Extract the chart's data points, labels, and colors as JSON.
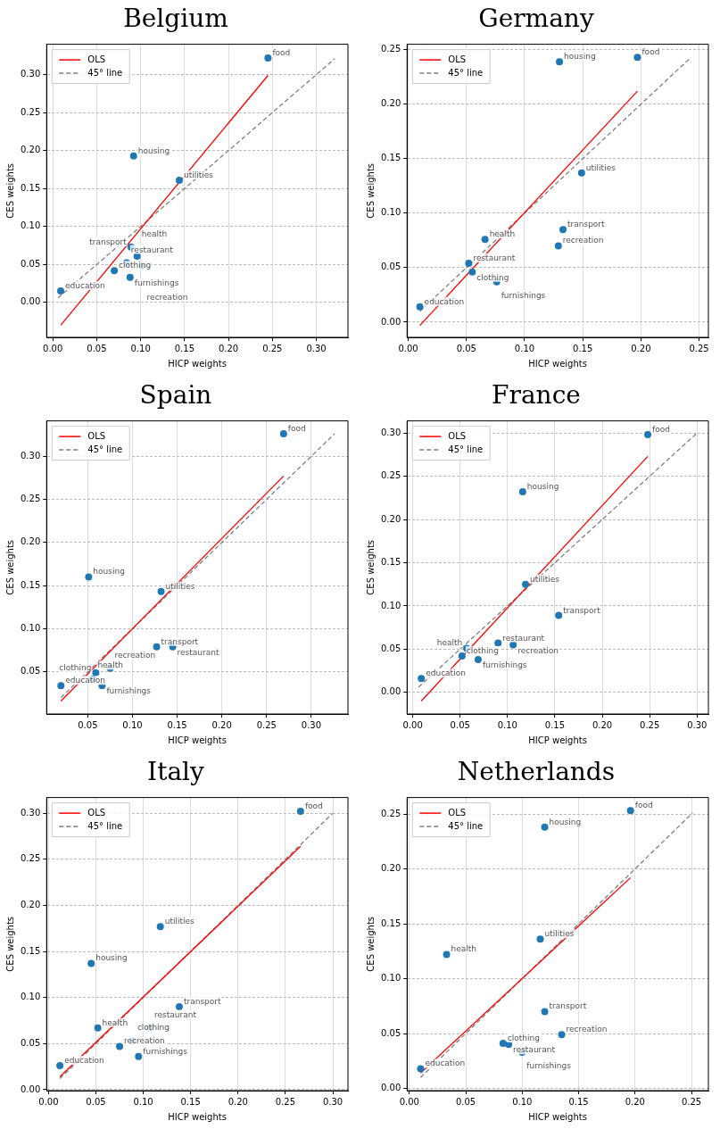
{
  "chart_data": [
    {
      "type": "scatter",
      "title": "Belgium",
      "xlabel": "HICP weights",
      "ylabel": "CES weights",
      "xlim": [
        -0.007,
        0.336
      ],
      "ylim": [
        -0.046,
        0.34
      ],
      "xticks": [
        {
          "value": 0,
          "label": "0.00"
        },
        0.05,
        {
          "value": 0.1,
          "label": "0.10"
        },
        0.15,
        {
          "value": 0.2,
          "label": "0.20"
        },
        0.25,
        {
          "value": 0.3,
          "label": "0.30"
        }
      ],
      "yticks": [
        {
          "value": 0,
          "label": "0.00"
        },
        0.05,
        {
          "value": 0.1,
          "label": "0.10"
        },
        0.15,
        {
          "value": 0.2,
          "label": "0.20"
        },
        0.25,
        {
          "value": 0.3,
          "label": "0.30"
        }
      ],
      "grid": true,
      "legend": "top left",
      "series": [
        {
          "type": "scatter",
          "marker": "circle",
          "color": "#1f77b4",
          "x": [
            0.245,
            0.092,
            0.144,
            0.089,
            0.096,
            0.084,
            0.102,
            0.07,
            0.088,
            0.009
          ],
          "values": [
            0.322,
            0.193,
            0.161,
            0.073,
            0.061,
            0.052,
            0.048,
            0.042,
            0.033,
            0.015
          ],
          "value_labels": [
            "food",
            "housing",
            "utilities",
            "transport",
            "health",
            "restaurant",
            "recreation",
            "clothing",
            "furnishings",
            "education"
          ]
        },
        {
          "type": "line",
          "marker": "none",
          "name": "OLS",
          "color": "#ff0000",
          "x": [
            0.009,
            0.245
          ],
          "values": [
            -0.03,
            0.299
          ]
        },
        {
          "type": "line",
          "marker": "none",
          "name": "45° line",
          "color": "#808080",
          "line_style": "dashed",
          "x": [
            0.006,
            0.321
          ],
          "values": [
            0.006,
            0.321
          ]
        }
      ]
    },
    {
      "type": "scatter",
      "title": "Germany",
      "xlabel": "HICP weights",
      "ylabel": "CES weights",
      "xlim": [
        -0.001,
        0.258
      ],
      "ylim": [
        -0.014,
        0.255
      ],
      "xticks": [
        {
          "value": 0,
          "label": "0.00"
        },
        0.05,
        {
          "value": 0.1,
          "label": "0.10"
        },
        0.15,
        {
          "value": 0.2,
          "label": "0.20"
        },
        0.25
      ],
      "yticks": [
        {
          "value": 0,
          "label": "0.00"
        },
        0.05,
        {
          "value": 0.1,
          "label": "0.10"
        },
        0.15,
        {
          "value": 0.2,
          "label": "0.20"
        },
        0.25
      ],
      "grid": true,
      "legend": "top left",
      "series": [
        {
          "type": "scatter",
          "marker": "circle",
          "color": "#1f77b4",
          "x": [
            0.197,
            0.13,
            0.149,
            0.133,
            0.129,
            0.066,
            0.052,
            0.055,
            0.076,
            0.01
          ],
          "values": [
            0.243,
            0.239,
            0.137,
            0.085,
            0.07,
            0.076,
            0.054,
            0.046,
            0.037,
            0.014
          ],
          "value_labels": [
            "food",
            "housing",
            "utilities",
            "transport",
            "recreation",
            "health",
            "restaurant",
            "clothing",
            "furnishings",
            "education"
          ]
        },
        {
          "type": "line",
          "marker": "none",
          "name": "OLS",
          "color": "#ff0000",
          "x": [
            0.01,
            0.197
          ],
          "values": [
            -0.003,
            0.212
          ]
        },
        {
          "type": "line",
          "marker": "none",
          "name": "45° line",
          "color": "#808080",
          "line_style": "dashed",
          "x": [
            0.01,
            0.243
          ],
          "values": [
            0.01,
            0.243
          ]
        }
      ]
    },
    {
      "type": "scatter",
      "title": "Spain",
      "xlabel": "HICP weights",
      "ylabel": "CES weights",
      "xlim": [
        0.004,
        0.341
      ],
      "ylim": [
        0.001,
        0.341
      ],
      "xticks": [
        0.05,
        {
          "value": 0.1,
          "label": "0.10"
        },
        0.15,
        {
          "value": 0.2,
          "label": "0.20"
        },
        0.25,
        {
          "value": 0.3,
          "label": "0.30"
        }
      ],
      "yticks": [
        0.05,
        {
          "value": 0.1,
          "label": "0.10"
        },
        0.15,
        {
          "value": 0.2,
          "label": "0.20"
        },
        0.25,
        {
          "value": 0.3,
          "label": "0.30"
        }
      ],
      "grid": true,
      "legend": "top left",
      "series": [
        {
          "type": "scatter",
          "marker": "circle",
          "color": "#1f77b4",
          "x": [
            0.269,
            0.051,
            0.132,
            0.127,
            0.145,
            0.075,
            0.059,
            0.056,
            0.066,
            0.02
          ],
          "values": [
            0.326,
            0.16,
            0.143,
            0.079,
            0.079,
            0.054,
            0.049,
            0.042,
            0.034,
            0.034
          ],
          "value_labels": [
            "food",
            "housing",
            "utilities",
            "transport",
            "restaurant",
            "recreation",
            "clothing",
            "health",
            "furnishings",
            "education"
          ]
        },
        {
          "type": "line",
          "marker": "none",
          "name": "OLS",
          "color": "#ff0000",
          "x": [
            0.02,
            0.269
          ],
          "values": [
            0.016,
            0.277
          ]
        },
        {
          "type": "line",
          "marker": "none",
          "name": "45° line",
          "color": "#808080",
          "line_style": "dashed",
          "x": [
            0.02,
            0.326
          ],
          "values": [
            0.02,
            0.326
          ]
        }
      ]
    },
    {
      "type": "scatter",
      "title": "France",
      "xlabel": "HICP weights",
      "ylabel": "CES weights",
      "xlim": [
        -0.006,
        0.312
      ],
      "ylim": [
        -0.025,
        0.314
      ],
      "xticks": [
        {
          "value": 0,
          "label": "0.00"
        },
        0.05,
        {
          "value": 0.1,
          "label": "0.10"
        },
        0.15,
        {
          "value": 0.2,
          "label": "0.20"
        },
        0.25,
        {
          "value": 0.3,
          "label": "0.30"
        }
      ],
      "yticks": [
        {
          "value": 0,
          "label": "0.00"
        },
        0.05,
        {
          "value": 0.1,
          "label": "0.10"
        },
        0.15,
        {
          "value": 0.2,
          "label": "0.20"
        },
        0.25,
        {
          "value": 0.3,
          "label": "0.30"
        }
      ],
      "grid": true,
      "legend": "top left",
      "series": [
        {
          "type": "scatter",
          "marker": "circle",
          "color": "#1f77b4",
          "x": [
            0.248,
            0.116,
            0.119,
            0.154,
            0.09,
            0.106,
            0.057,
            0.052,
            0.069,
            0.009
          ],
          "values": [
            0.298,
            0.232,
            0.125,
            0.089,
            0.057,
            0.055,
            0.051,
            0.042,
            0.038,
            0.016
          ],
          "value_labels": [
            "food",
            "housing",
            "utilities",
            "transport",
            "restaurant",
            "recreation",
            "health",
            "clothing",
            "furnishings",
            "education"
          ]
        },
        {
          "type": "line",
          "marker": "none",
          "name": "OLS",
          "color": "#ff0000",
          "x": [
            0.009,
            0.248
          ],
          "values": [
            -0.01,
            0.273
          ]
        },
        {
          "type": "line",
          "marker": "none",
          "name": "45° line",
          "color": "#808080",
          "line_style": "dashed",
          "x": [
            0.006,
            0.299
          ],
          "values": [
            0.006,
            0.299
          ]
        }
      ]
    },
    {
      "type": "scatter",
      "title": "Italy",
      "xlabel": "HICP weights",
      "ylabel": "CES weights",
      "xlim": [
        -0.002,
        0.316
      ],
      "ylim": [
        -0.001,
        0.317
      ],
      "xticks": [
        {
          "value": 0,
          "label": "0.00"
        },
        0.05,
        {
          "value": 0.1,
          "label": "0.10"
        },
        0.15,
        {
          "value": 0.2,
          "label": "0.20"
        },
        0.25,
        {
          "value": 0.3,
          "label": "0.30"
        }
      ],
      "yticks": [
        {
          "value": 0,
          "label": "0.00"
        },
        0.05,
        {
          "value": 0.1,
          "label": "0.10"
        },
        0.15,
        {
          "value": 0.2,
          "label": "0.20"
        },
        0.25,
        {
          "value": 0.3,
          "label": "0.30"
        }
      ],
      "grid": true,
      "legend": "top left",
      "series": [
        {
          "type": "scatter",
          "marker": "circle",
          "color": "#1f77b4",
          "x": [
            0.266,
            0.118,
            0.045,
            0.138,
            0.107,
            0.052,
            0.089,
            0.075,
            0.095,
            0.012
          ],
          "values": [
            0.302,
            0.177,
            0.137,
            0.09,
            0.067,
            0.067,
            0.053,
            0.047,
            0.036,
            0.026
          ],
          "value_labels": [
            "food",
            "utilities",
            "housing",
            "transport",
            "restaurant",
            "health",
            "clothing",
            "recreation",
            "furnishings",
            "education"
          ]
        },
        {
          "type": "line",
          "marker": "none",
          "name": "OLS",
          "color": "#ff0000",
          "x": [
            0.012,
            0.266
          ],
          "values": [
            0.014,
            0.264
          ]
        },
        {
          "type": "line",
          "marker": "none",
          "name": "45° line",
          "color": "#808080",
          "line_style": "dashed",
          "x": [
            0.012,
            0.3
          ],
          "values": [
            0.012,
            0.3
          ]
        }
      ]
    },
    {
      "type": "scatter",
      "title": "Netherlands",
      "xlabel": "HICP weights",
      "ylabel": "CES weights",
      "xlim": [
        -0.002,
        0.265
      ],
      "ylim": [
        -0.002,
        0.265
      ],
      "xticks": [
        {
          "value": 0,
          "label": "0.00"
        },
        0.05,
        {
          "value": 0.1,
          "label": "0.10"
        },
        0.15,
        {
          "value": 0.2,
          "label": "0.20"
        },
        0.25
      ],
      "yticks": [
        {
          "value": 0,
          "label": "0.00"
        },
        0.05,
        {
          "value": 0.1,
          "label": "0.10"
        },
        0.15,
        {
          "value": 0.2,
          "label": "0.20"
        },
        0.25
      ],
      "grid": true,
      "legend": "top left",
      "series": [
        {
          "type": "scatter",
          "marker": "circle",
          "color": "#1f77b4",
          "x": [
            0.196,
            0.12,
            0.116,
            0.033,
            0.12,
            0.135,
            0.083,
            0.088,
            0.1,
            0.01
          ],
          "values": [
            0.253,
            0.238,
            0.136,
            0.122,
            0.07,
            0.049,
            0.041,
            0.04,
            0.033,
            0.018
          ],
          "value_labels": [
            "food",
            "housing",
            "utilities",
            "health",
            "transport",
            "recreation",
            "clothing",
            "restaurant",
            "furnishings",
            "education"
          ]
        },
        {
          "type": "line",
          "marker": "none",
          "name": "OLS",
          "color": "#ff0000",
          "x": [
            0.01,
            0.196
          ],
          "values": [
            0.014,
            0.192
          ]
        },
        {
          "type": "line",
          "marker": "none",
          "name": "45° line",
          "color": "#808080",
          "line_style": "dashed",
          "x": [
            0.01,
            0.251
          ],
          "values": [
            0.01,
            0.251
          ]
        }
      ]
    }
  ]
}
